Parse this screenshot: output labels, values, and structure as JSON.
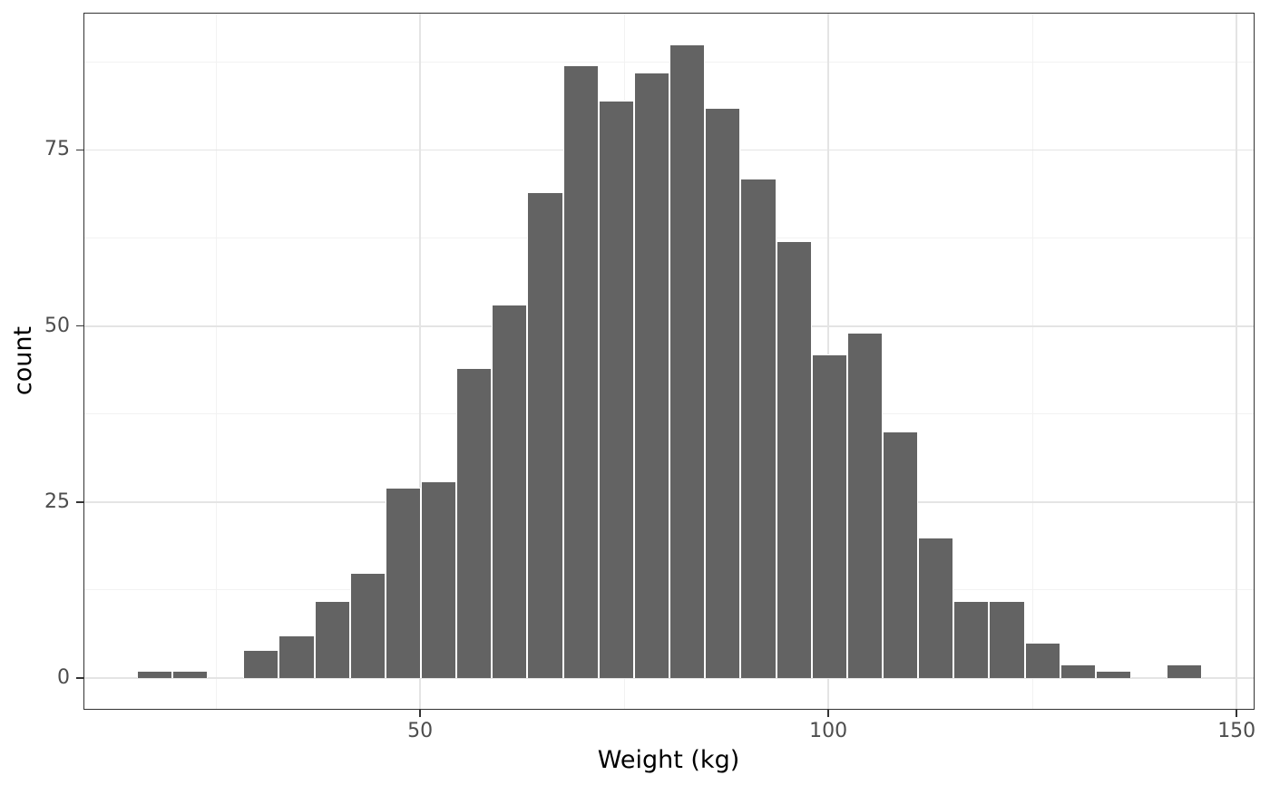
{
  "chart_data": {
    "type": "bar",
    "subtype": "histogram",
    "title": "",
    "xlabel": "Weight (kg)",
    "ylabel": "count",
    "bin_start": 15.3,
    "binwidth": 4.35,
    "counts": [
      1,
      1,
      0,
      4,
      6,
      11,
      15,
      27,
      28,
      44,
      53,
      69,
      87,
      82,
      86,
      90,
      81,
      71,
      62,
      46,
      49,
      35,
      20,
      11,
      11,
      5,
      2,
      1,
      0,
      2
    ],
    "total_count": 1000,
    "xlim": [
      8.77,
      152.2
    ],
    "ylim": [
      -4.5,
      94.5
    ],
    "x_ticks": [
      50,
      100,
      150
    ],
    "y_ticks": [
      0,
      25,
      50,
      75
    ],
    "x_minor_gridlines": [
      25,
      75,
      125
    ],
    "y_minor_gridlines": [
      12.5,
      37.5,
      62.5,
      87.5
    ],
    "grid": "on",
    "legend": "none",
    "colors": {
      "bar_fill": "#636363",
      "bar_border": "#ffffff",
      "grid_major": "#e4e4e4",
      "grid_minor": "#f2f2f2",
      "panel_border": "#333333",
      "tick_mark": "#333333",
      "tick_label": "#4d4d4d",
      "axis_title": "#000000",
      "background": "#ffffff"
    }
  }
}
